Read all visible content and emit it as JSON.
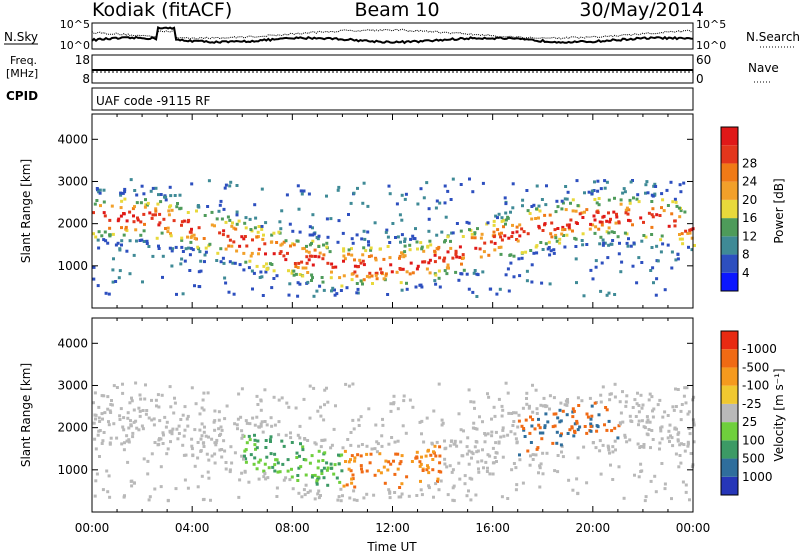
{
  "header": {
    "station": "Kodiak (fitACF)",
    "beam": "Beam 10",
    "date": "30/May/2014"
  },
  "panels": {
    "nsky_label": "N.Sky",
    "nsearch_label": "N.Search",
    "noise_ticks_left": [
      "10^5",
      "10^0"
    ],
    "noise_ticks_right": [
      "10^5",
      "10^0"
    ],
    "freq_label_top": "Freq.",
    "freq_label_unit": "[MHz]",
    "freq_ticks": [
      "18",
      "8"
    ],
    "nave_label": "Nave",
    "nave_ticks": [
      "60",
      "0"
    ],
    "cpid_label": "CPID",
    "cpid_text": "UAF code -9115 RF"
  },
  "chart_data": [
    {
      "type": "heatmap",
      "name": "power",
      "ylabel": "Slant Range [km]",
      "yticks": [
        1000,
        2000,
        3000,
        4000
      ],
      "ylim": [
        0,
        4600
      ],
      "xlim": [
        "00:00",
        "24:00"
      ],
      "colorbar": {
        "label": "Power [dB]",
        "ticks": [
          4,
          8,
          12,
          16,
          20,
          24,
          28
        ],
        "colors": [
          "#0b17ff",
          "#2d4fbf",
          "#3f8a96",
          "#4e9b5a",
          "#e8d93b",
          "#f2a02a",
          "#f07a16",
          "#e3361c",
          "#e01818"
        ]
      }
    },
    {
      "type": "heatmap",
      "name": "velocity",
      "ylabel": "Slant Range [km]",
      "yticks": [
        1000,
        2000,
        3000,
        4000
      ],
      "ylim": [
        0,
        4600
      ],
      "xlim": [
        "00:00",
        "24:00"
      ],
      "xticks": [
        "00:00",
        "04:00",
        "08:00",
        "12:00",
        "16:00",
        "20:00",
        "00:00"
      ],
      "xlabel": "Time UT",
      "colorbar": {
        "label": "Velocity [m s⁻¹]",
        "ticks": [
          "1000",
          "500",
          "100",
          "25",
          "-25",
          "-100",
          "-500",
          "-1000"
        ],
        "colors": [
          "#2636b8",
          "#2f6e9c",
          "#3c9a65",
          "#6fcf3c",
          "#b9b9b9",
          "#f0c830",
          "#f59a1e",
          "#f06a14",
          "#e82a12"
        ]
      }
    }
  ]
}
